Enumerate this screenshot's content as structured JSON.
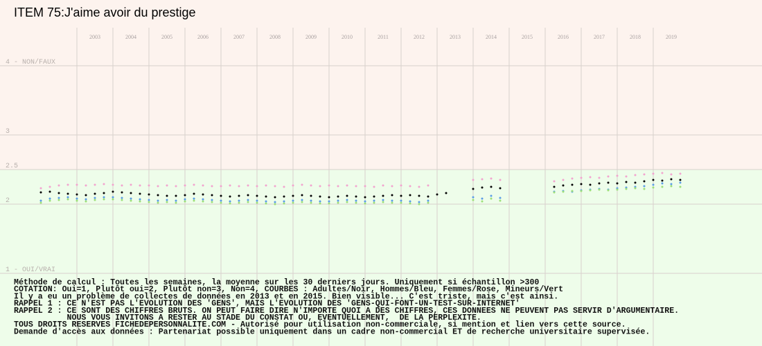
{
  "chart_data": {
    "type": "scatter",
    "title": "ITEM 75:J'aime avoir du prestige",
    "xlim": [
      2001,
      2022
    ],
    "xticks": [
      {
        "value": 2003,
        "label": "2003"
      },
      {
        "value": 2004,
        "label": "2004"
      },
      {
        "value": 2005,
        "label": "2005"
      },
      {
        "value": 2006,
        "label": "2006"
      },
      {
        "value": 2007,
        "label": "2007"
      },
      {
        "value": 2008,
        "label": "2008"
      },
      {
        "value": 2009,
        "label": "2009"
      },
      {
        "value": 2010,
        "label": "2010"
      },
      {
        "value": 2011,
        "label": "2011"
      },
      {
        "value": 2012,
        "label": "2012"
      },
      {
        "value": 2013,
        "label": "2013"
      },
      {
        "value": 2014,
        "label": "2014"
      },
      {
        "value": 2015,
        "label": "2015"
      },
      {
        "value": 2016,
        "label": "2016"
      },
      {
        "value": 2017,
        "label": "2017"
      },
      {
        "value": 2018,
        "label": "2018"
      },
      {
        "value": 2019,
        "label": "2019"
      }
    ],
    "ylim": [
      -0.05,
      4.55
    ],
    "yticks": [
      {
        "value": 1,
        "label": "1 - OUI/VRAI"
      },
      2,
      2.5,
      3,
      {
        "value": 4,
        "label": "4 - NON/FAUX"
      }
    ],
    "grid": true,
    "zone_split": 2.5,
    "zone_colors": [
      "#eefdea",
      "#fdf3ee"
    ],
    "series": [
      {
        "color": "#f2a4cf",
        "x": [
          2002,
          2002.25,
          2002.5,
          2002.75,
          2003,
          2003.25,
          2003.5,
          2003.75,
          2004,
          2004.25,
          2004.5,
          2004.75,
          2005,
          2005.25,
          2005.5,
          2005.75,
          2006,
          2006.25,
          2006.5,
          2006.75,
          2007,
          2007.25,
          2007.5,
          2007.75,
          2008,
          2008.25,
          2008.5,
          2008.75,
          2009,
          2009.25,
          2009.5,
          2009.75,
          2010,
          2010.25,
          2010.5,
          2010.75,
          2011,
          2011.25,
          2011.5,
          2011.75,
          2012,
          2012.25,
          2012.5,
          2012.75,
          2014,
          2014.25,
          2014.5,
          2014.75,
          2016.25,
          2016.5,
          2016.75,
          2017,
          2017.25,
          2017.5,
          2017.75,
          2018,
          2018.25,
          2018.5,
          2018.75,
          2019,
          2019.25,
          2019.5,
          2019.75
        ],
        "values": [
          2.23,
          2.25,
          2.27,
          2.28,
          2.28,
          2.27,
          2.28,
          2.29,
          2.28,
          2.27,
          2.28,
          2.27,
          2.27,
          2.26,
          2.27,
          2.26,
          2.27,
          2.28,
          2.27,
          2.26,
          2.26,
          2.27,
          2.26,
          2.27,
          2.26,
          2.27,
          2.26,
          2.25,
          2.27,
          2.28,
          2.27,
          2.26,
          2.27,
          2.26,
          2.27,
          2.26,
          2.26,
          2.25,
          2.27,
          2.26,
          2.27,
          2.26,
          2.25,
          2.27,
          2.35,
          2.36,
          2.37,
          2.35,
          2.33,
          2.35,
          2.37,
          2.38,
          2.39,
          2.38,
          2.4,
          2.41,
          2.4,
          2.42,
          2.43,
          2.44,
          2.45,
          2.43,
          2.44
        ]
      },
      {
        "color": "#5b9de6",
        "x": [
          2002,
          2002.25,
          2002.5,
          2002.75,
          2003,
          2003.25,
          2003.5,
          2003.75,
          2004,
          2004.25,
          2004.5,
          2004.75,
          2005,
          2005.25,
          2005.5,
          2005.75,
          2006,
          2006.25,
          2006.5,
          2006.75,
          2007,
          2007.25,
          2007.5,
          2007.75,
          2008,
          2008.25,
          2008.5,
          2008.75,
          2009,
          2009.25,
          2009.5,
          2009.75,
          2010,
          2010.25,
          2010.5,
          2010.75,
          2011,
          2011.25,
          2011.5,
          2011.75,
          2012,
          2012.25,
          2012.5,
          2012.75,
          2014,
          2014.25,
          2014.5,
          2014.75,
          2016.25,
          2016.5,
          2016.75,
          2017,
          2017.25,
          2017.5,
          2017.75,
          2018,
          2018.25,
          2018.5,
          2018.75,
          2019,
          2019.25,
          2019.5,
          2019.75
        ],
        "values": [
          2.05,
          2.08,
          2.09,
          2.1,
          2.08,
          2.07,
          2.09,
          2.1,
          2.1,
          2.09,
          2.08,
          2.07,
          2.06,
          2.05,
          2.06,
          2.05,
          2.07,
          2.08,
          2.07,
          2.06,
          2.05,
          2.04,
          2.05,
          2.06,
          2.05,
          2.04,
          2.03,
          2.04,
          2.05,
          2.06,
          2.05,
          2.04,
          2.04,
          2.05,
          2.06,
          2.05,
          2.04,
          2.05,
          2.06,
          2.05,
          2.05,
          2.04,
          2.03,
          2.05,
          2.1,
          2.08,
          2.12,
          2.09,
          2.18,
          2.19,
          2.18,
          2.2,
          2.21,
          2.22,
          2.21,
          2.23,
          2.24,
          2.25,
          2.26,
          2.28,
          2.3,
          2.29,
          2.31
        ]
      },
      {
        "color": "#9ddf79",
        "x": [
          2002,
          2002.25,
          2002.5,
          2002.75,
          2003,
          2003.25,
          2003.5,
          2003.75,
          2004,
          2004.25,
          2004.5,
          2004.75,
          2005,
          2005.25,
          2005.5,
          2005.75,
          2006,
          2006.25,
          2006.5,
          2006.75,
          2007,
          2007.25,
          2007.5,
          2007.75,
          2008,
          2008.25,
          2008.5,
          2008.75,
          2009,
          2009.25,
          2009.5,
          2009.75,
          2010,
          2010.25,
          2010.5,
          2010.75,
          2011,
          2011.25,
          2011.5,
          2011.75,
          2012,
          2012.25,
          2012.5,
          2012.75,
          2014,
          2014.25,
          2014.5,
          2014.75,
          2016.25,
          2016.5,
          2016.75,
          2017,
          2017.25,
          2017.5,
          2017.75,
          2018,
          2018.25,
          2018.5,
          2018.75,
          2019,
          2019.25,
          2019.5,
          2019.75
        ],
        "values": [
          2.02,
          2.05,
          2.06,
          2.07,
          2.05,
          2.04,
          2.06,
          2.07,
          2.07,
          2.06,
          2.05,
          2.04,
          2.03,
          2.02,
          2.03,
          2.02,
          2.04,
          2.05,
          2.04,
          2.03,
          2.02,
          2.01,
          2.02,
          2.03,
          2.02,
          2.01,
          2.0,
          2.01,
          2.02,
          2.03,
          2.02,
          2.01,
          2.01,
          2.02,
          2.03,
          2.02,
          2.01,
          2.02,
          2.03,
          2.02,
          2.02,
          2.01,
          2.0,
          2.02,
          2.06,
          2.04,
          2.08,
          2.05,
          2.17,
          2.18,
          2.19,
          2.19,
          2.2,
          2.21,
          2.2,
          2.21,
          2.22,
          2.23,
          2.22,
          2.24,
          2.25,
          2.26,
          2.25
        ]
      },
      {
        "color": "#000000",
        "x": [
          2002,
          2002.25,
          2002.5,
          2002.75,
          2003,
          2003.25,
          2003.5,
          2003.75,
          2004,
          2004.25,
          2004.5,
          2004.75,
          2005,
          2005.25,
          2005.5,
          2005.75,
          2006,
          2006.25,
          2006.5,
          2006.75,
          2007,
          2007.25,
          2007.5,
          2007.75,
          2008,
          2008.25,
          2008.5,
          2008.75,
          2009,
          2009.25,
          2009.5,
          2009.75,
          2010,
          2010.25,
          2010.5,
          2010.75,
          2011,
          2011.25,
          2011.5,
          2011.75,
          2012,
          2012.25,
          2012.5,
          2012.75,
          2013,
          2013.25,
          2014,
          2014.25,
          2014.5,
          2014.75,
          2016.25,
          2016.5,
          2016.75,
          2017,
          2017.25,
          2017.5,
          2017.75,
          2018,
          2018.25,
          2018.5,
          2018.75,
          2019,
          2019.25,
          2019.5,
          2019.75
        ],
        "values": [
          2.17,
          2.18,
          2.16,
          2.15,
          2.14,
          2.13,
          2.15,
          2.16,
          2.18,
          2.17,
          2.16,
          2.15,
          2.14,
          2.13,
          2.12,
          2.12,
          2.13,
          2.15,
          2.14,
          2.13,
          2.12,
          2.11,
          2.12,
          2.13,
          2.12,
          2.11,
          2.1,
          2.11,
          2.12,
          2.13,
          2.12,
          2.11,
          2.1,
          2.11,
          2.12,
          2.11,
          2.1,
          2.11,
          2.12,
          2.13,
          2.12,
          2.13,
          2.12,
          2.11,
          2.14,
          2.16,
          2.22,
          2.24,
          2.25,
          2.23,
          2.25,
          2.27,
          2.28,
          2.29,
          2.28,
          2.3,
          2.31,
          2.3,
          2.32,
          2.31,
          2.33,
          2.35,
          2.34,
          2.36,
          2.35
        ]
      }
    ],
    "notes": [
      "Méthode de calcul : Toutes les semaines, la moyenne sur les 30 derniers jours. Uniquement si échantillon >300",
      "COTATION: Oui=1, Plutôt oui=2, Plutôt non=3, Non=4, COURBES : Adultes/Noir, Hommes/Bleu, Femmes/Rose, Mineurs/Vert",
      "Il y a eu un problème de collectes de données en 2013 et en 2015. Bien visible... C'est triste, mais c'est ainsi.",
      "RAPPEL 1 : CE N'EST PAS L'EVOLUTION DES 'GENS', MAIS L'EVOLUTION DES 'GENS-QUI-FONT-UN-TEST-SUR-INTERNET'",
      "RAPPEL 2 : CE SONT DES CHIFFRES BRUTS. ON PEUT FAIRE DIRE N'IMPORTE QUOI A DES CHIFFRES, CES DONNEES NE PEUVENT PAS SERVIR D'ARGUMENTAIRE.",
      "           NOUS VOUS INVITONS A RESTER AU STADE DU CONSTAT OU, EVENTUELLEMENT,  DE LA PERPLEXITE.",
      "TOUS DROITS RESERVES FICHEDEPERSONNALITE.COM - Autorisé pour utilisation non-commerciale, si mention et lien vers cette source.",
      "Demande d'accès aux données : Partenariat possible uniquement dans un cadre non-commercial ET de recherche universitaire supervisée."
    ]
  }
}
